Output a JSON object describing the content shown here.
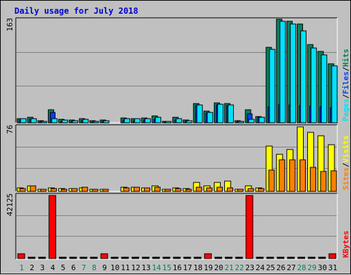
{
  "title": "Daily usage for July 2018",
  "colors": {
    "background": "#c0c0c0",
    "title": "#0000cc",
    "hits_dark": "#008080",
    "hits": "#00805c",
    "files": "#0040ff",
    "pages": "#00e0ff",
    "visits": "#ffff00",
    "sites": "#ff8000",
    "kbytes": "#ff0000",
    "weekend": "#00805c",
    "weekday": "#000000"
  },
  "chart_data": [
    {
      "type": "bar",
      "name": "hits-files-pages",
      "ymax_label": "163",
      "ymax": 163,
      "legend": [
        "Pages",
        "/",
        "Files",
        "/",
        "Hits"
      ],
      "categories": [
        "1",
        "2",
        "3",
        "4",
        "5",
        "6",
        "7",
        "8",
        "9",
        "10",
        "11",
        "12",
        "13",
        "14",
        "15",
        "16",
        "17",
        "18",
        "19",
        "20",
        "21",
        "22",
        "23",
        "24",
        "25",
        "26",
        "27",
        "28",
        "29",
        "30",
        "31"
      ],
      "series": [
        {
          "name": "Hits",
          "values": [
            7,
            9,
            3,
            21,
            5,
            4,
            7,
            3,
            4,
            0,
            8,
            7,
            8,
            11,
            2,
            9,
            4,
            30,
            18,
            31,
            30,
            3,
            21,
            10,
            119,
            163,
            160,
            155,
            123,
            112,
            93
          ]
        },
        {
          "name": "Files",
          "values": [
            4,
            5,
            2,
            16,
            2,
            2,
            3,
            1,
            2,
            0,
            4,
            3,
            4,
            5,
            1,
            4,
            2,
            27,
            15,
            28,
            27,
            2,
            14,
            9,
            25,
            28,
            28,
            27,
            26,
            25,
            24
          ]
        },
        {
          "name": "Pages",
          "values": [
            6,
            7,
            2,
            6,
            4,
            3,
            5,
            2,
            3,
            0,
            6,
            6,
            6,
            9,
            2,
            6,
            3,
            28,
            16,
            29,
            28,
            2,
            5,
            9,
            116,
            160,
            155,
            145,
            118,
            107,
            90
          ]
        }
      ]
    },
    {
      "type": "bar",
      "name": "visits-sites",
      "ymax_label": "76",
      "ymax": 76,
      "legend": [
        "Sites",
        "/",
        "Visits"
      ],
      "categories": [
        "1",
        "2",
        "3",
        "4",
        "5",
        "6",
        "7",
        "8",
        "9",
        "10",
        "11",
        "12",
        "13",
        "14",
        "15",
        "16",
        "17",
        "18",
        "19",
        "20",
        "21",
        "22",
        "23",
        "24",
        "25",
        "26",
        "27",
        "28",
        "29",
        "30",
        "31"
      ],
      "series": [
        {
          "name": "Visits",
          "values": [
            4,
            6,
            2,
            4,
            3,
            3,
            4,
            2,
            2,
            0,
            5,
            5,
            4,
            6,
            2,
            4,
            3,
            10,
            6,
            10,
            12,
            2,
            6,
            4,
            53,
            43,
            49,
            75,
            69,
            65,
            54
          ]
        },
        {
          "name": "Sites",
          "values": [
            3,
            6,
            2,
            3,
            2,
            3,
            5,
            2,
            2,
            0,
            4,
            5,
            4,
            5,
            2,
            3,
            2,
            5,
            4,
            5,
            4,
            2,
            3,
            3,
            25,
            37,
            37,
            37,
            28,
            23,
            24
          ]
        }
      ]
    },
    {
      "type": "bar",
      "name": "kbytes",
      "ymax_label": "42125",
      "ymax": 42125,
      "legend": [
        "KBytes"
      ],
      "categories": [
        "1",
        "2",
        "3",
        "4",
        "5",
        "6",
        "7",
        "8",
        "9",
        "10",
        "11",
        "12",
        "13",
        "14",
        "15",
        "16",
        "17",
        "18",
        "19",
        "20",
        "21",
        "22",
        "23",
        "24",
        "25",
        "26",
        "27",
        "28",
        "29",
        "30",
        "31"
      ],
      "series": [
        {
          "name": "KBytes",
          "values": [
            3200,
            0,
            0,
            42125,
            0,
            0,
            0,
            0,
            3300,
            0,
            0,
            0,
            0,
            0,
            0,
            0,
            0,
            0,
            3000,
            0,
            0,
            0,
            42125,
            0,
            0,
            0,
            0,
            0,
            0,
            0,
            3300
          ]
        }
      ]
    }
  ],
  "weekend_days": [
    "1",
    "7",
    "8",
    "14",
    "15",
    "21",
    "22",
    "28",
    "29"
  ]
}
